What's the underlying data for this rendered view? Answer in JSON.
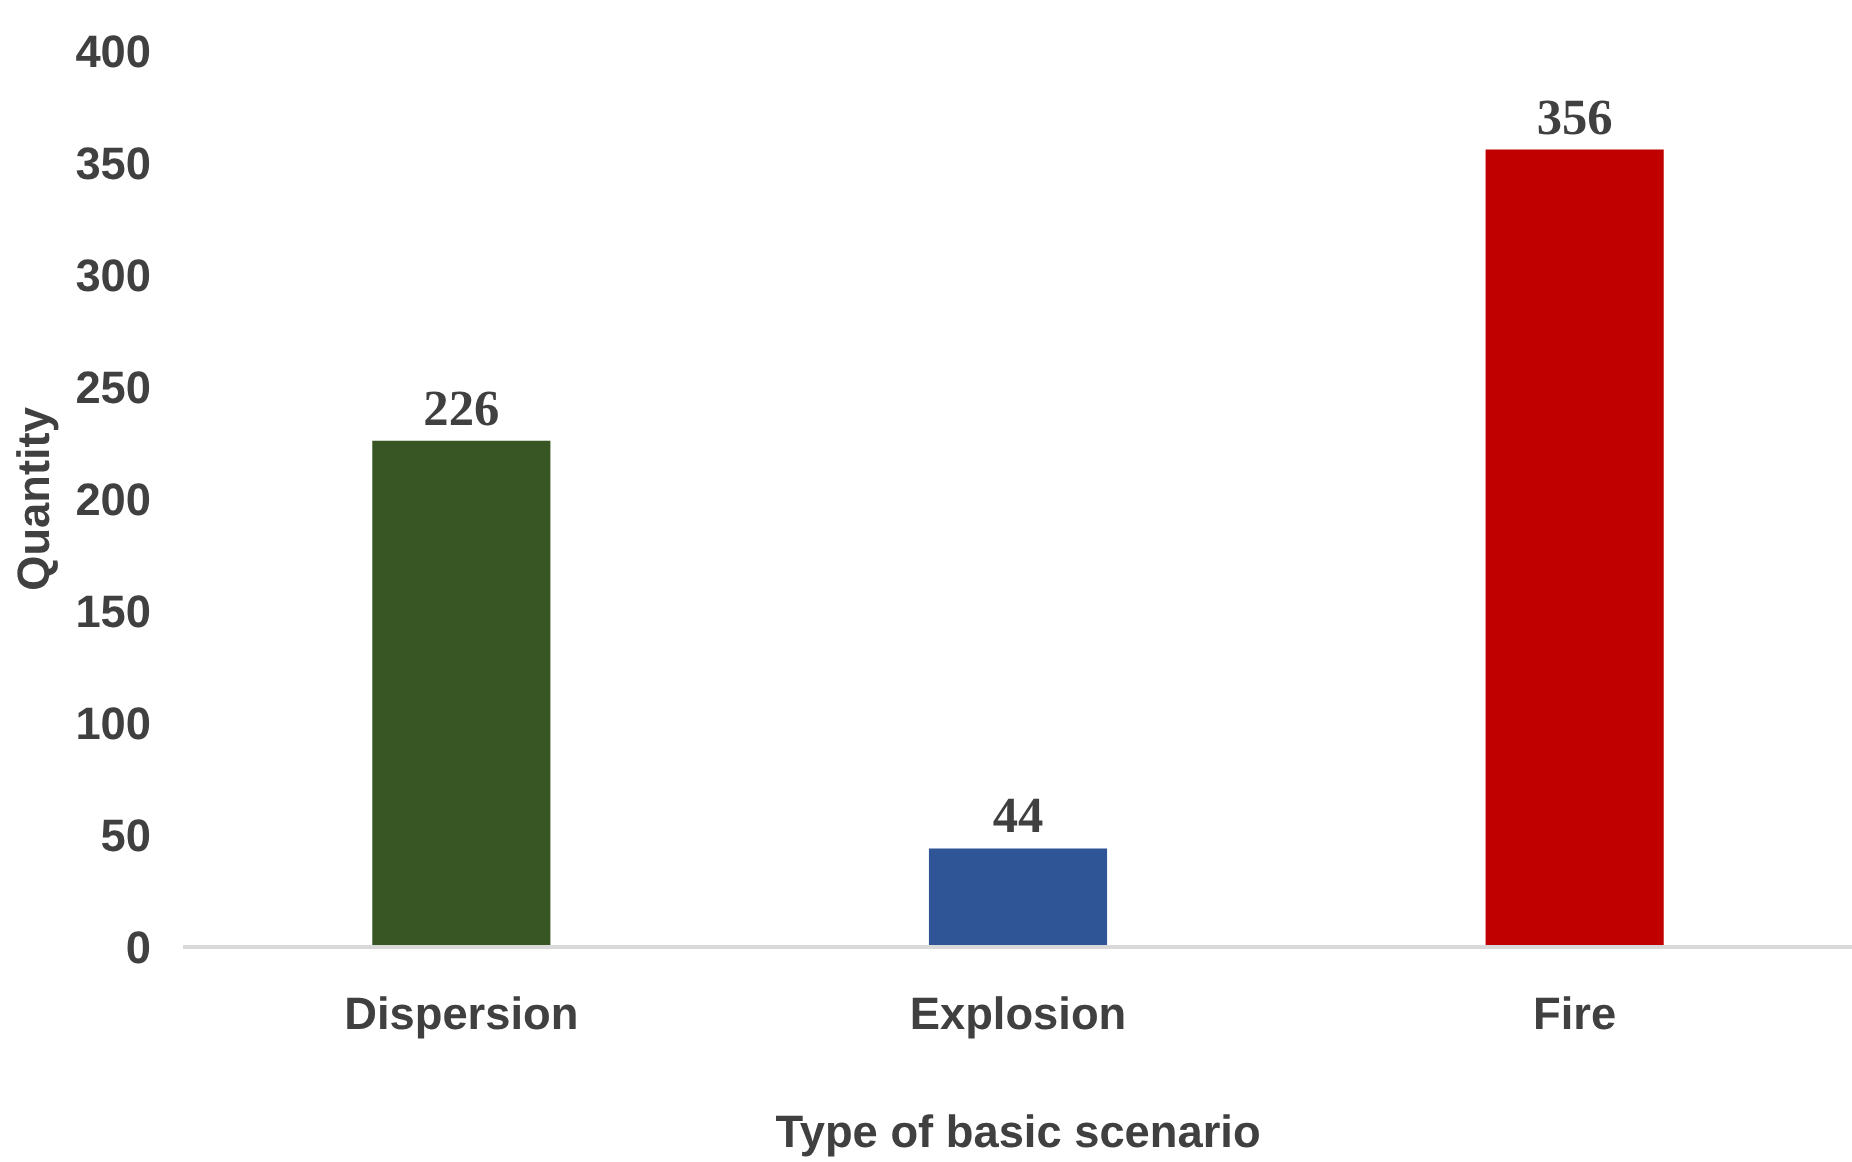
{
  "chart_data": {
    "type": "bar",
    "xlabel": "Type of basic scenario",
    "ylabel": "Quantity",
    "categories": [
      "Dispersion",
      "Explosion",
      "Fire"
    ],
    "values": [
      226,
      44,
      356
    ],
    "colors": [
      "#375623",
      "#2f5597",
      "#c00000"
    ],
    "ylim": [
      0,
      400
    ],
    "yticks": [
      0,
      50,
      100,
      150,
      200,
      250,
      300,
      350,
      400
    ],
    "grid": false,
    "data_labels": true
  }
}
